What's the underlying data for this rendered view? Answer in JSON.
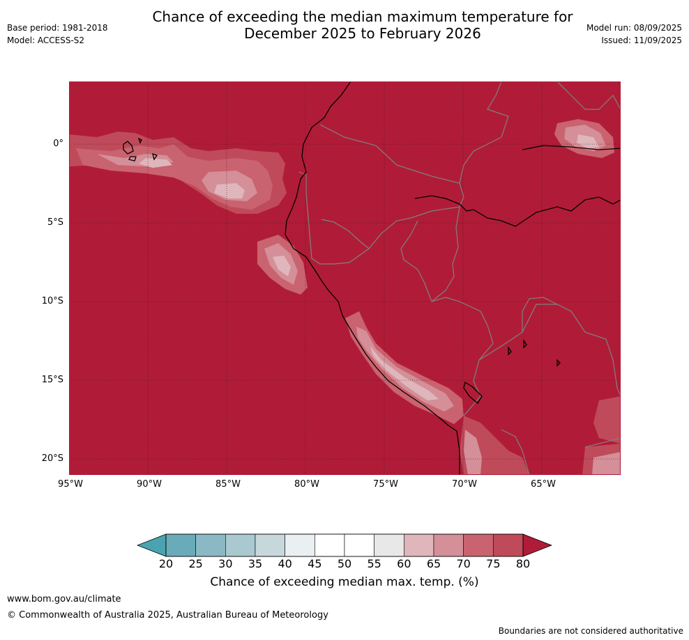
{
  "title": {
    "line1": "Chance of exceeding the median maximum temperature for",
    "line2": "December 2025 to February 2026"
  },
  "meta": {
    "base_period": "Base period: 1981-2018",
    "model": "Model: ACCESS-S2",
    "model_run": "Model run: 08/09/2025",
    "issued": "Issued: 11/09/2025"
  },
  "map": {
    "x_ticks": [
      "95°W",
      "90°W",
      "85°W",
      "80°W",
      "75°W",
      "70°W",
      "65°W"
    ],
    "y_ticks": [
      "0°",
      "5°S",
      "10°S",
      "15°S",
      "20°S"
    ],
    "lon_range": [
      -95,
      -60
    ],
    "lat_range": [
      -21,
      3.9
    ],
    "background_category": "80+",
    "colors": {
      "above_80": "#b01c37",
      "75_80": "#bf4b5a",
      "70_75": "#c9636f",
      "65_70": "#d48f98",
      "60_65": "#dfb6bc",
      "55_60": "#e8e8e8",
      "coastline": "#000000",
      "border": "#808080",
      "grid": "#3a0a14"
    }
  },
  "colorbar": {
    "ticks": [
      "20",
      "25",
      "30",
      "35",
      "40",
      "45",
      "50",
      "55",
      "60",
      "65",
      "70",
      "75",
      "80"
    ],
    "colors": [
      "#6aabb9",
      "#8ab9c5",
      "#aac8cf",
      "#c7d8dc",
      "#eaeff1",
      "#ffffff",
      "#ffffff",
      "#e8e8e8",
      "#dfb6bc",
      "#d48f98",
      "#c9636f",
      "#bf4b5a"
    ],
    "under_color": "#4aa3b1",
    "over_color": "#b01c37",
    "label": "Chance of exceeding median max. temp. (%)"
  },
  "footer": {
    "url": "www.bom.gov.au/climate",
    "copyright": "© Commonwealth of Australia 2025, Australian Bureau of Meteorology",
    "disclaimer": "Boundaries are not considered authoritative"
  }
}
